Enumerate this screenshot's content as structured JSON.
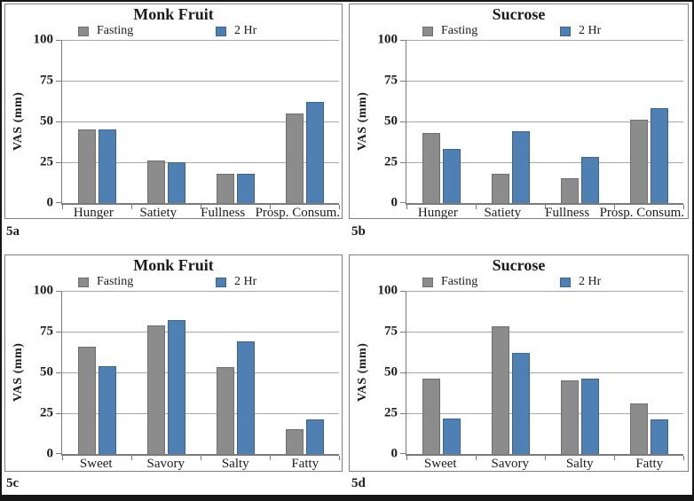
{
  "figure": {
    "panel_labels": [
      "5a",
      "5b",
      "5c",
      "5d"
    ]
  },
  "colors": {
    "outer_border": "#161616",
    "panel_border": "#808080",
    "axis": "#7a7a7a",
    "gridline": "#a8a8a8",
    "text": "#1b1b1b",
    "series_colors": [
      {
        "name": "Fasting",
        "fill": "#8c8c8c",
        "border": "#6f6f6f"
      },
      {
        "name": "2 Hr",
        "fill": "#4e80b4",
        "border": "#3a648f"
      }
    ]
  },
  "legend": {
    "entries": [
      "Fasting",
      "2 Hr"
    ]
  },
  "y_axis": {
    "label": "VAS (mm)",
    "ticks": [
      100,
      75,
      50,
      25,
      0
    ],
    "max": 100
  },
  "chart_data": [
    {
      "id": "5a",
      "type": "bar",
      "title": "Monk Fruit",
      "categories": [
        "Hunger",
        "Satiety",
        "Fullness",
        "Prosp. Consum."
      ],
      "series": [
        {
          "name": "Fasting",
          "values": [
            45,
            26,
            18,
            55
          ]
        },
        {
          "name": "2 Hr",
          "values": [
            45,
            25,
            18,
            62
          ]
        }
      ],
      "xlabel": "",
      "ylabel": "VAS (mm)",
      "ylim": [
        0,
        100
      ],
      "grid": true,
      "legend_position": "top"
    },
    {
      "id": "5b",
      "type": "bar",
      "title": "Sucrose",
      "categories": [
        "Hunger",
        "Satiety",
        "Fullness",
        "Prosp. Consum."
      ],
      "series": [
        {
          "name": "Fasting",
          "values": [
            43,
            18,
            15,
            51
          ]
        },
        {
          "name": "2 Hr",
          "values": [
            33,
            44,
            28,
            58
          ]
        }
      ],
      "xlabel": "",
      "ylabel": "VAS (mm)",
      "ylim": [
        0,
        100
      ],
      "grid": true,
      "legend_position": "top"
    },
    {
      "id": "5c",
      "type": "bar",
      "title": "Monk Fruit",
      "categories": [
        "Sweet",
        "Savory",
        "Salty",
        "Fatty"
      ],
      "series": [
        {
          "name": "Fasting",
          "values": [
            66,
            79,
            53,
            15
          ]
        },
        {
          "name": "2 Hr",
          "values": [
            54,
            82,
            69,
            21
          ]
        }
      ],
      "xlabel": "",
      "ylabel": "VAS (mm)",
      "ylim": [
        0,
        100
      ],
      "grid": true,
      "legend_position": "top"
    },
    {
      "id": "5d",
      "type": "bar",
      "title": "Sucrose",
      "categories": [
        "Sweet",
        "Savory",
        "Salty",
        "Fatty"
      ],
      "series": [
        {
          "name": "Fasting",
          "values": [
            46,
            78,
            45,
            31
          ]
        },
        {
          "name": "2 Hr",
          "values": [
            22,
            62,
            46,
            21
          ]
        }
      ],
      "xlabel": "",
      "ylabel": "VAS (mm)",
      "ylim": [
        0,
        100
      ],
      "grid": true,
      "legend_position": "top"
    }
  ]
}
